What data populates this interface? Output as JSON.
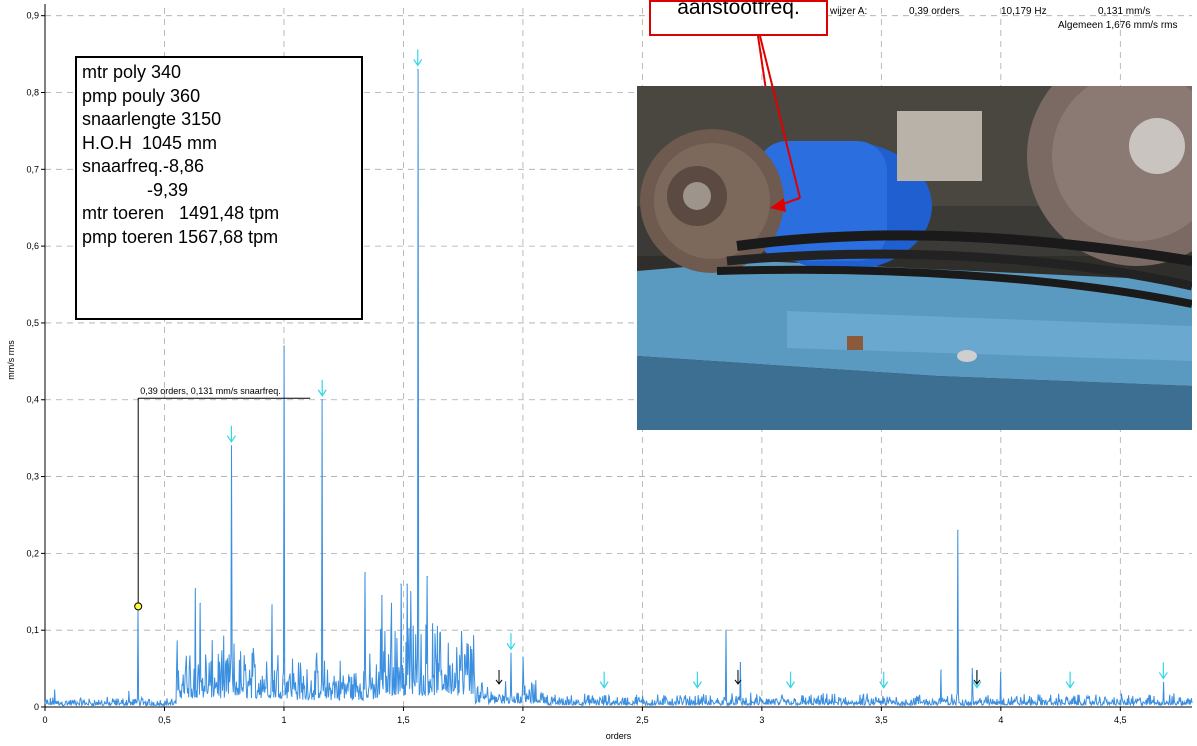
{
  "chart_data": {
    "type": "line",
    "xlabel": "orders",
    "ylabel": "mm/s rms",
    "xlim": [
      0,
      4.8
    ],
    "ylim": [
      0,
      0.91
    ],
    "x_ticks": [
      "0",
      "0,5",
      "1",
      "1,5",
      "2",
      "2,5",
      "3",
      "3,5",
      "4",
      "4,5"
    ],
    "y_ticks": [
      "0",
      "0,1",
      "0,2",
      "0,3",
      "0,4",
      "0,5",
      "0,6",
      "0,7",
      "0,8",
      "0,9"
    ],
    "grid": true,
    "series_color": "#3a8fe0",
    "peaks": [
      {
        "x": 0.04,
        "y": 0.022
      },
      {
        "x": 0.35,
        "y": 0.02
      },
      {
        "x": 0.39,
        "y": 0.131
      },
      {
        "x": 0.63,
        "y": 0.154
      },
      {
        "x": 0.65,
        "y": 0.135
      },
      {
        "x": 0.78,
        "y": 0.34
      },
      {
        "x": 0.95,
        "y": 0.133
      },
      {
        "x": 1.0,
        "y": 0.47
      },
      {
        "x": 1.16,
        "y": 0.4
      },
      {
        "x": 1.34,
        "y": 0.175
      },
      {
        "x": 1.41,
        "y": 0.145
      },
      {
        "x": 1.45,
        "y": 0.135
      },
      {
        "x": 1.49,
        "y": 0.16
      },
      {
        "x": 1.515,
        "y": 0.16
      },
      {
        "x": 1.53,
        "y": 0.15
      },
      {
        "x": 1.56,
        "y": 0.83
      },
      {
        "x": 1.6,
        "y": 0.17
      },
      {
        "x": 1.95,
        "y": 0.07
      },
      {
        "x": 2.0,
        "y": 0.065
      },
      {
        "x": 2.85,
        "y": 0.1
      },
      {
        "x": 2.91,
        "y": 0.058
      },
      {
        "x": 3.82,
        "y": 0.23
      },
      {
        "x": 3.75,
        "y": 0.048
      },
      {
        "x": 3.88,
        "y": 0.05
      },
      {
        "x": 4.0,
        "y": 0.045
      },
      {
        "x": 4.68,
        "y": 0.032
      }
    ],
    "noise_regions": [
      {
        "from": 0.0,
        "to": 0.55,
        "level": 0.007
      },
      {
        "from": 0.55,
        "to": 1.05,
        "level": 0.045
      },
      {
        "from": 1.05,
        "to": 1.4,
        "level": 0.035
      },
      {
        "from": 1.4,
        "to": 1.8,
        "level": 0.06
      },
      {
        "from": 1.8,
        "to": 2.1,
        "level": 0.018
      },
      {
        "from": 2.1,
        "to": 4.8,
        "level": 0.009
      }
    ],
    "cyan_markers": [
      0.78,
      1.16,
      1.56,
      1.95,
      2.34,
      2.73,
      3.12,
      3.51,
      3.9,
      4.29,
      4.68
    ],
    "black_markers": [
      1.9,
      2.9,
      3.9
    ],
    "marker_color": "#33d6e6",
    "cursor": {
      "x": 0.39,
      "y": 0.131,
      "label": "0,39 orders, 0,131 mm/s snaarfreq."
    }
  },
  "readout": {
    "label": "wijzer A:",
    "orders": "0,39 orders",
    "hz": "10,179 Hz",
    "amplitude": "0,131 mm/s",
    "overall": "Algemeen 1,676 mm/s rms"
  },
  "info_box": {
    "lines": [
      "mtr poly 340",
      "pmp pouly 360",
      "snaarlengte 3150",
      "H.O.H  1045 mm",
      "snaarfreq.-8,86",
      "             -9,39",
      "mtr toeren   1491,48 tpm",
      "pmp toeren 1567,68 tpm"
    ]
  },
  "callout": {
    "text": "aanstootfreq."
  },
  "photo": {
    "description_icon": "belt-drive-photo"
  }
}
